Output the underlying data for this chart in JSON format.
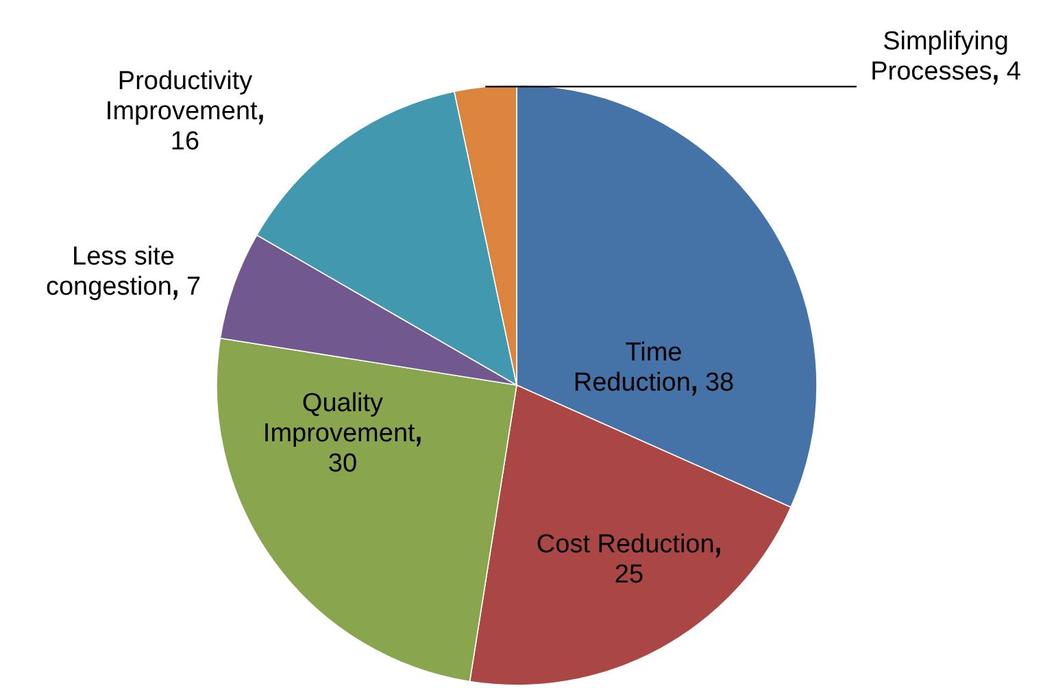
{
  "chart_data": {
    "type": "pie",
    "categories": [
      "Time Reduction",
      "Cost Reduction",
      "Quality Improvement",
      "Less site congestion",
      "Productivity Improvement",
      "Simplifying Processes"
    ],
    "values": [
      38,
      25,
      30,
      7,
      16,
      4
    ],
    "colors": [
      "#4572a7",
      "#aa4643",
      "#89a54e",
      "#71588f",
      "#4198af",
      "#db843d"
    ],
    "data_labels": true,
    "legend": false
  }
}
